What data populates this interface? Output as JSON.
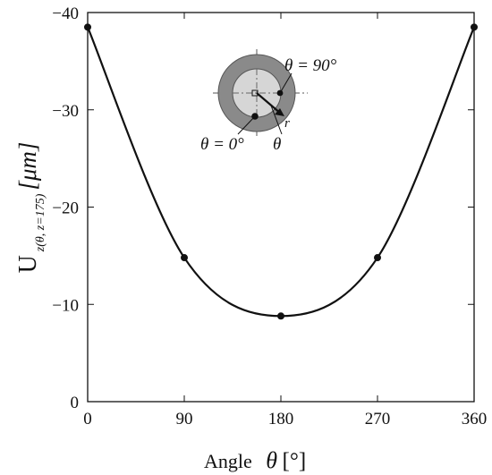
{
  "chart_data": {
    "type": "line",
    "x": [
      0,
      90,
      180,
      270,
      360
    ],
    "y": [
      -38.5,
      -14.8,
      -8.8,
      -14.8,
      -38.5
    ],
    "xlim": [
      0,
      360
    ],
    "ylim": [
      0,
      -40
    ],
    "xticks": [
      "0",
      "90",
      "180",
      "270",
      "360"
    ],
    "yticks": [
      "0",
      "−10",
      "−20",
      "−30",
      "−40"
    ],
    "xlabel": {
      "text": "Angle",
      "symbol": "θ",
      "unit": "[°]"
    },
    "ylabel": {
      "base": "U",
      "subscript": "z(θ, z=175)",
      "unit": "[μm]"
    },
    "grid": false,
    "inset": {
      "label_90": "θ = 90°",
      "label_0": "θ = 0°",
      "label_theta": "θ",
      "label_r": "r"
    },
    "colors": {
      "line": "#111111",
      "outer_ring": "#8a8a8a",
      "inner_disk": "#d6d6d6"
    }
  }
}
